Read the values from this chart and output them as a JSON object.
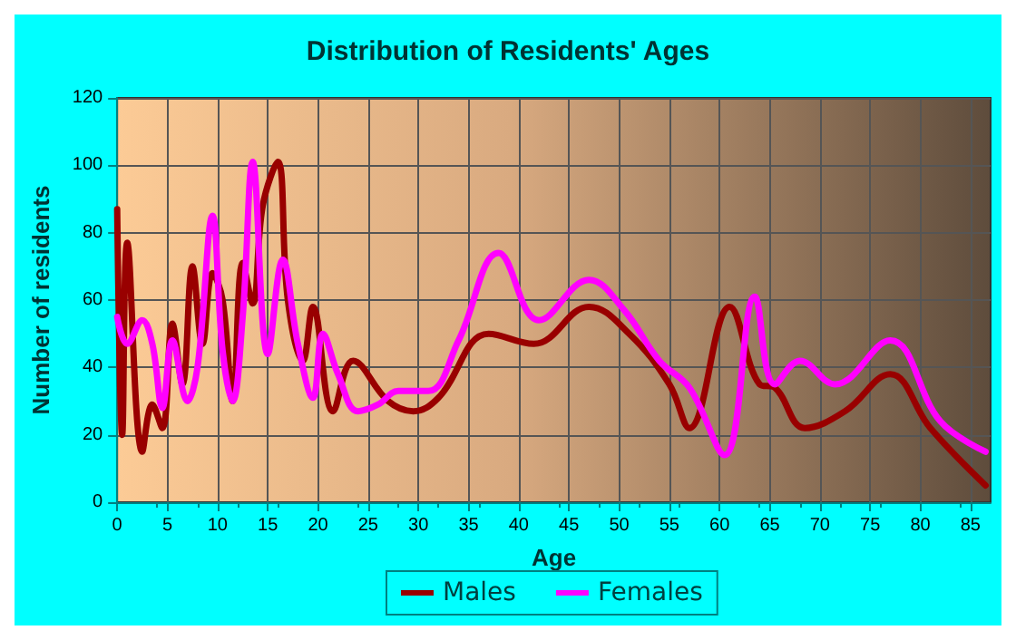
{
  "chart_data": {
    "type": "line",
    "title": "Distribution of Residents' Ages",
    "xlabel": "Age",
    "ylabel": "Number of residents",
    "xlim": [
      0,
      87
    ],
    "xticks": [
      0,
      5,
      10,
      15,
      20,
      25,
      30,
      35,
      40,
      45,
      50,
      55,
      60,
      65,
      70,
      75,
      80,
      85
    ],
    "ylim": [
      0,
      120
    ],
    "yticks": [
      0,
      20,
      40,
      60,
      80,
      100,
      120
    ],
    "grid": true,
    "legend": "bottom",
    "marker": "none",
    "line_style": "solid",
    "series": [
      {
        "name": "Males",
        "color": "#990000",
        "x": [
          0,
          0.5,
          1,
          2.5,
          3.5,
          4.5,
          5.5,
          6.5,
          7.5,
          8.5,
          9.5,
          10.5,
          11.5,
          12.5,
          13.5,
          14.5,
          16,
          17,
          18.5,
          19.5,
          21.5,
          23.5,
          27,
          29.5,
          32,
          37,
          41.5,
          47,
          51,
          55,
          57,
          61,
          64,
          65.5,
          68.5,
          72.5,
          77,
          81,
          86.5
        ],
        "values": [
          87,
          20,
          77,
          15,
          29,
          22,
          53,
          35,
          70,
          47,
          68,
          60,
          30,
          71,
          59,
          88,
          101,
          60,
          42,
          58,
          27,
          42,
          30,
          27,
          31,
          50,
          47,
          58,
          50,
          35,
          22,
          58,
          35,
          34,
          22,
          27,
          38,
          22,
          5
        ]
      },
      {
        "name": "Females",
        "color": "#ff00ff",
        "x": [
          0,
          1,
          2.5,
          3.5,
          4.5,
          5.5,
          7,
          8,
          9.5,
          10.5,
          11.5,
          12.5,
          13.5,
          15,
          16.5,
          18,
          19.5,
          20.5,
          22,
          24,
          26,
          28,
          31,
          34,
          38,
          42,
          47,
          50.5,
          54,
          57,
          60.5,
          63.5,
          65.5,
          68,
          71.5,
          77,
          82,
          86.5
        ],
        "values": [
          55,
          47,
          54,
          47,
          28,
          48,
          30,
          40,
          85,
          45,
          30,
          55,
          101,
          44,
          72,
          47,
          31,
          50,
          38,
          27,
          29,
          33,
          33,
          48,
          74,
          54,
          66,
          57,
          42,
          34,
          14,
          61,
          35,
          42,
          35,
          48,
          24,
          15
        ]
      }
    ]
  }
}
